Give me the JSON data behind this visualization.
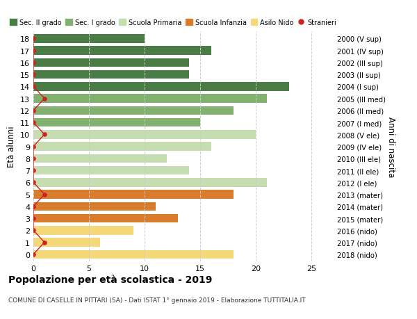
{
  "ages": [
    18,
    17,
    16,
    15,
    14,
    13,
    12,
    11,
    10,
    9,
    8,
    7,
    6,
    5,
    4,
    3,
    2,
    1,
    0
  ],
  "years": [
    "2000 (V sup)",
    "2001 (IV sup)",
    "2002 (III sup)",
    "2003 (II sup)",
    "2004 (I sup)",
    "2005 (III med)",
    "2006 (II med)",
    "2007 (I med)",
    "2008 (V ele)",
    "2009 (IV ele)",
    "2010 (III ele)",
    "2011 (II ele)",
    "2012 (I ele)",
    "2013 (mater)",
    "2014 (mater)",
    "2015 (mater)",
    "2016 (nido)",
    "2017 (nido)",
    "2018 (nido)"
  ],
  "values": [
    10,
    16,
    14,
    14,
    23,
    21,
    18,
    15,
    20,
    16,
    12,
    14,
    21,
    18,
    11,
    13,
    9,
    6,
    18
  ],
  "bar_colors": [
    "#4a7c45",
    "#4a7c45",
    "#4a7c45",
    "#4a7c45",
    "#4a7c45",
    "#82b06e",
    "#82b06e",
    "#82b06e",
    "#c5ddb0",
    "#c5ddb0",
    "#c5ddb0",
    "#c5ddb0",
    "#c5ddb0",
    "#d97c2b",
    "#d97c2b",
    "#d97c2b",
    "#f5d87a",
    "#f5d87a",
    "#f5d87a"
  ],
  "legend_labels": [
    "Sec. II grado",
    "Sec. I grado",
    "Scuola Primaria",
    "Scuola Infanzia",
    "Asilo Nido",
    "Stranieri"
  ],
  "legend_colors": [
    "#4a7c45",
    "#82b06e",
    "#c5ddb0",
    "#d97c2b",
    "#f5d87a",
    "#cc2222"
  ],
  "stranieri_color": "#cc2222",
  "stranieri_x": [
    0,
    0,
    0,
    0,
    0,
    1,
    0,
    0,
    1,
    0,
    0,
    0,
    0,
    1,
    0,
    0,
    0,
    1,
    0
  ],
  "ylabel": "Età alunni",
  "right_label": "Anni di nascita",
  "title": "Popolazione per età scolastica - 2019",
  "subtitle": "COMUNE DI CASELLE IN PITTARI (SA) - Dati ISTAT 1° gennaio 2019 - Elaborazione TUTTITALIA.IT",
  "xlim": [
    0,
    27
  ],
  "bg_color": "#ffffff",
  "grid_color": "#cccccc",
  "bar_height": 0.72
}
